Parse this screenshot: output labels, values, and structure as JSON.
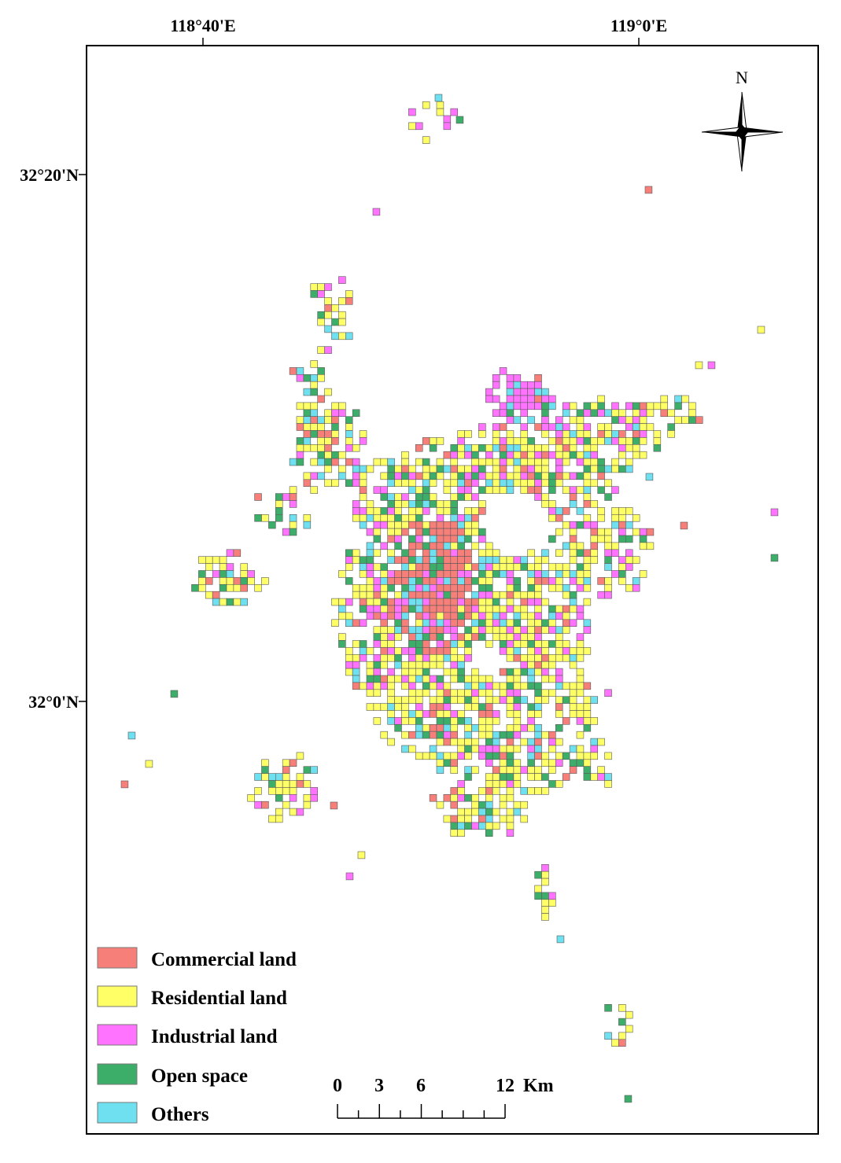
{
  "coordinates": {
    "lon_labels": [
      "118°40'E",
      "119°0'E"
    ],
    "lat_labels": [
      "32°20'N",
      "32°0'N"
    ]
  },
  "north_arrow": {
    "label": "N"
  },
  "legend": {
    "items": [
      {
        "label": "Commercial land",
        "color": "#f77f7a"
      },
      {
        "label": "Residential land",
        "color": "#ffff66"
      },
      {
        "label": "Industrial land",
        "color": "#ff73ff"
      },
      {
        "label": "Open space",
        "color": "#3cae6a"
      },
      {
        "label": "Others",
        "color": "#6ee0f0"
      }
    ]
  },
  "scale_bar": {
    "ticks": [
      "0",
      "3",
      "6",
      "12"
    ],
    "unit": "Km"
  }
}
